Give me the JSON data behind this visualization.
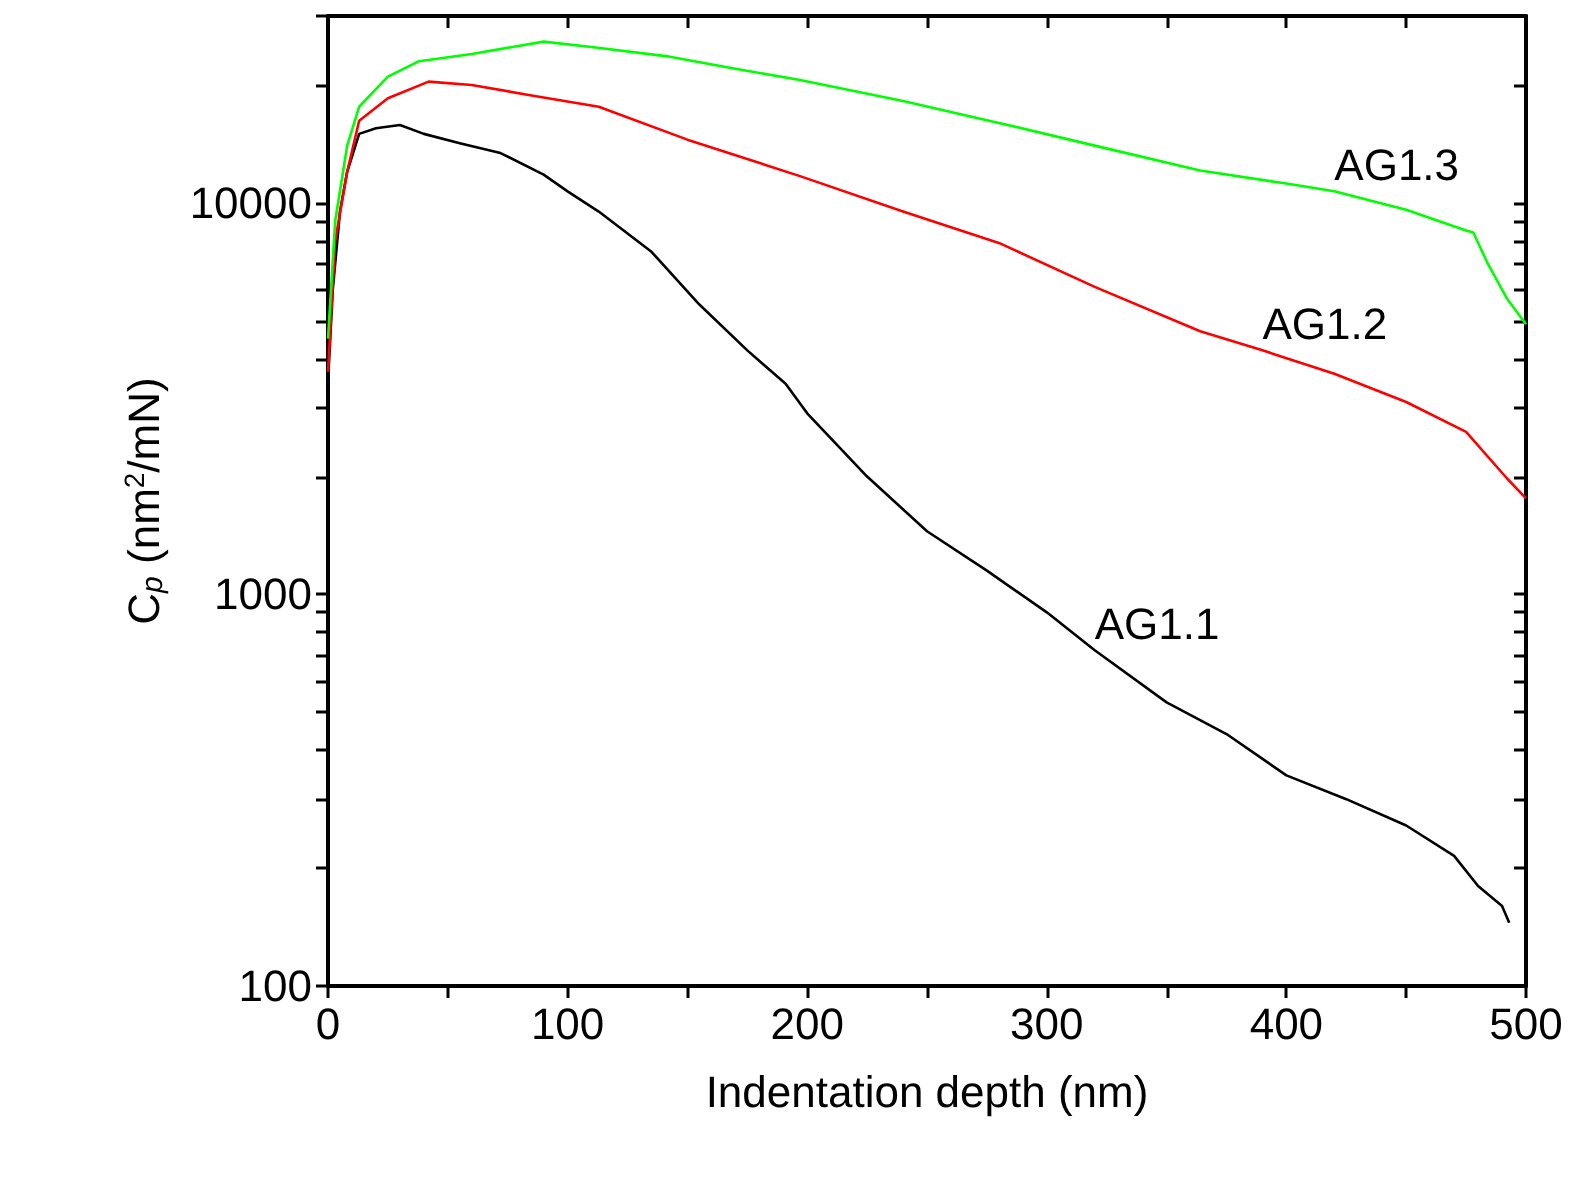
{
  "chart_data": {
    "type": "line",
    "xlabel": "Indentation depth (nm)",
    "ylabel": "C$_{p}$ (nm$^{2}$/mN)",
    "xlim": [
      0,
      500
    ],
    "xticks": [
      0,
      {
        "value": 50,
        "label": null
      },
      100,
      {
        "value": 150,
        "label": null
      },
      200,
      {
        "value": 250,
        "label": null
      },
      300,
      {
        "value": 350,
        "label": null
      },
      400,
      {
        "value": 450,
        "label": null
      },
      500
    ],
    "ylim": [
      100,
      30000
    ],
    "log": true,
    "yticks": [
      100,
      {
        "value": 200,
        "label": null
      },
      {
        "value": 300,
        "label": null
      },
      {
        "value": 400,
        "label": null
      },
      {
        "value": 500,
        "label": null
      },
      {
        "value": 600,
        "label": null
      },
      {
        "value": 700,
        "label": null
      },
      {
        "value": 800,
        "label": null
      },
      {
        "value": 900,
        "label": null
      },
      1000,
      {
        "value": 2000,
        "label": null
      },
      {
        "value": 3000,
        "label": null
      },
      {
        "value": 4000,
        "label": null
      },
      {
        "value": 5000,
        "label": null
      },
      {
        "value": 6000,
        "label": null
      },
      {
        "value": 7000,
        "label": null
      },
      {
        "value": 8000,
        "label": null
      },
      {
        "value": 9000,
        "label": null
      },
      10000,
      {
        "value": 20000,
        "label": null
      },
      {
        "value": 30000,
        "label": null
      }
    ],
    "grid": false,
    "legend": false,
    "line_style": "solid",
    "series": [
      {
        "name": "AG1.1",
        "color": "#000000",
        "x": [
          0,
          2,
          5,
          8,
          13,
          20,
          30,
          40,
          55,
          72,
          90,
          100,
          113,
          135,
          155,
          175,
          191,
          200,
          225,
          250,
          275,
          300,
          320,
          350,
          375,
          400,
          425,
          450,
          470,
          480,
          490,
          493
        ],
        "values": [
          3500,
          6000,
          9500,
          12000,
          15000,
          15500,
          15800,
          15000,
          14200,
          13400,
          11800,
          10700,
          9500,
          7500,
          5500,
          4200,
          3450,
          2900,
          2000,
          1450,
          1150,
          900,
          720,
          530,
          440,
          345,
          300,
          257,
          215,
          180,
          160,
          145
        ]
      },
      {
        "name": "AG1.2",
        "color": "#ff0000",
        "x": [
          0,
          3,
          8,
          13,
          25,
          42,
          60,
          85,
          113,
          150,
          197,
          240,
          280,
          320,
          364,
          390,
          420,
          450,
          475,
          492,
          500
        ],
        "values": [
          3700,
          8000,
          12000,
          16200,
          18500,
          20400,
          20000,
          18800,
          17600,
          14500,
          11700,
          9500,
          7900,
          6100,
          4700,
          4200,
          3660,
          3100,
          2600,
          1980,
          1760
        ]
      },
      {
        "name": "AG1.3",
        "color": "#00ff00",
        "x": [
          0,
          3,
          8,
          13,
          25,
          38,
          60,
          90,
          110,
          141,
          170,
          197,
          240,
          280,
          320,
          364,
          400,
          420,
          450,
          475,
          478,
          484,
          492,
          500
        ],
        "values": [
          4500,
          9000,
          14000,
          17600,
          21000,
          23000,
          24000,
          25800,
          25000,
          23700,
          22000,
          20600,
          18200,
          16000,
          14000,
          12100,
          11200,
          10700,
          9600,
          8500,
          8400,
          7000,
          5700,
          4900
        ]
      }
    ]
  }
}
